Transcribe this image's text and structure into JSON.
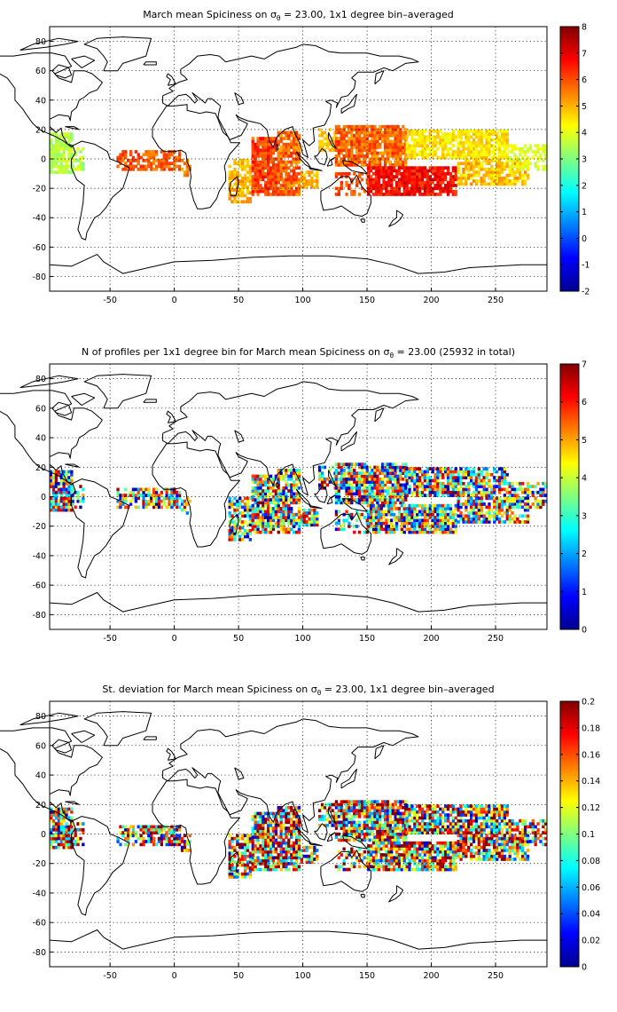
{
  "panels": [
    {
      "id": "mean",
      "title_prefix": "March mean Spiciness on ",
      "sigma": "σ",
      "sigma_sub": "θ",
      "title_suffix": " = 23.00, 1x1 degree bin–averaged",
      "colorbar_ticks": [
        "-2",
        "-1",
        "0",
        "1",
        "2",
        "3",
        "4",
        "5",
        "6",
        "7",
        "8"
      ],
      "clim": [
        -2,
        8
      ],
      "field": "mean"
    },
    {
      "id": "count",
      "title_prefix": "N of profiles per 1x1 degree bin for March mean Spiciness on ",
      "sigma": "σ",
      "sigma_sub": "θ",
      "title_suffix": " = 23.00 (25932 in total)",
      "colorbar_ticks": [
        "0",
        "1",
        "2",
        "3",
        "4",
        "5",
        "6",
        "7"
      ],
      "clim": [
        0,
        7
      ],
      "field": "count"
    },
    {
      "id": "std",
      "title_prefix": "St. deviation for March mean Spiciness on ",
      "sigma": "σ",
      "sigma_sub": "θ",
      "title_suffix": " = 23.00, 1x1 degree bin–averaged",
      "colorbar_ticks": [
        "0",
        "0.02",
        "0.04",
        "0.06",
        "0.08",
        "0.1",
        "0.12",
        "0.14",
        "0.16",
        "0.18",
        "0.2"
      ],
      "clim": [
        0,
        0.2
      ],
      "field": "std"
    }
  ],
  "map": {
    "lon_range": [
      -97,
      290
    ],
    "lat_range": [
      -90,
      90
    ],
    "x_ticks": [
      "-50",
      "0",
      "50",
      "100",
      "150",
      "200",
      "250"
    ],
    "y_ticks": [
      "80",
      "60",
      "40",
      "20",
      "0",
      "-20",
      "-40",
      "-60",
      "-80"
    ],
    "grid": "on",
    "colormap": "jet"
  }
}
